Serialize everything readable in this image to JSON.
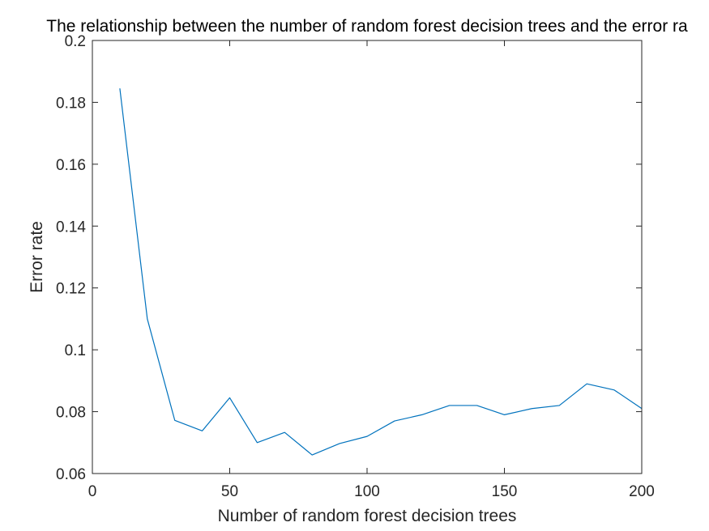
{
  "chart_data": {
    "type": "line",
    "title": "The relationship between the number of random forest decision trees and the error ra",
    "xlabel": "Number of random forest decision trees",
    "ylabel": "Error rate",
    "xlim": [
      0,
      200
    ],
    "ylim": [
      0.06,
      0.2
    ],
    "xticks": [
      0,
      50,
      100,
      150,
      200
    ],
    "xtick_labels": [
      "0",
      "50",
      "100",
      "150",
      "200"
    ],
    "yticks": [
      0.06,
      0.08,
      0.1,
      0.12,
      0.14,
      0.16,
      0.18,
      0.2
    ],
    "ytick_labels": [
      "0.06",
      "0.08",
      "0.1",
      "0.12",
      "0.14",
      "0.16",
      "0.18",
      "0.2"
    ],
    "grid": false,
    "series": [
      {
        "color": "#0072BD",
        "x": [
          10,
          20,
          30,
          40,
          50,
          60,
          70,
          80,
          90,
          100,
          110,
          120,
          130,
          140,
          150,
          160,
          170,
          180,
          190,
          200
        ],
        "y": [
          0.1845,
          0.11,
          0.0772,
          0.0738,
          0.0845,
          0.07,
          0.0733,
          0.066,
          0.0697,
          0.072,
          0.077,
          0.079,
          0.082,
          0.082,
          0.079,
          0.081,
          0.082,
          0.089,
          0.087,
          0.081
        ]
      }
    ]
  }
}
